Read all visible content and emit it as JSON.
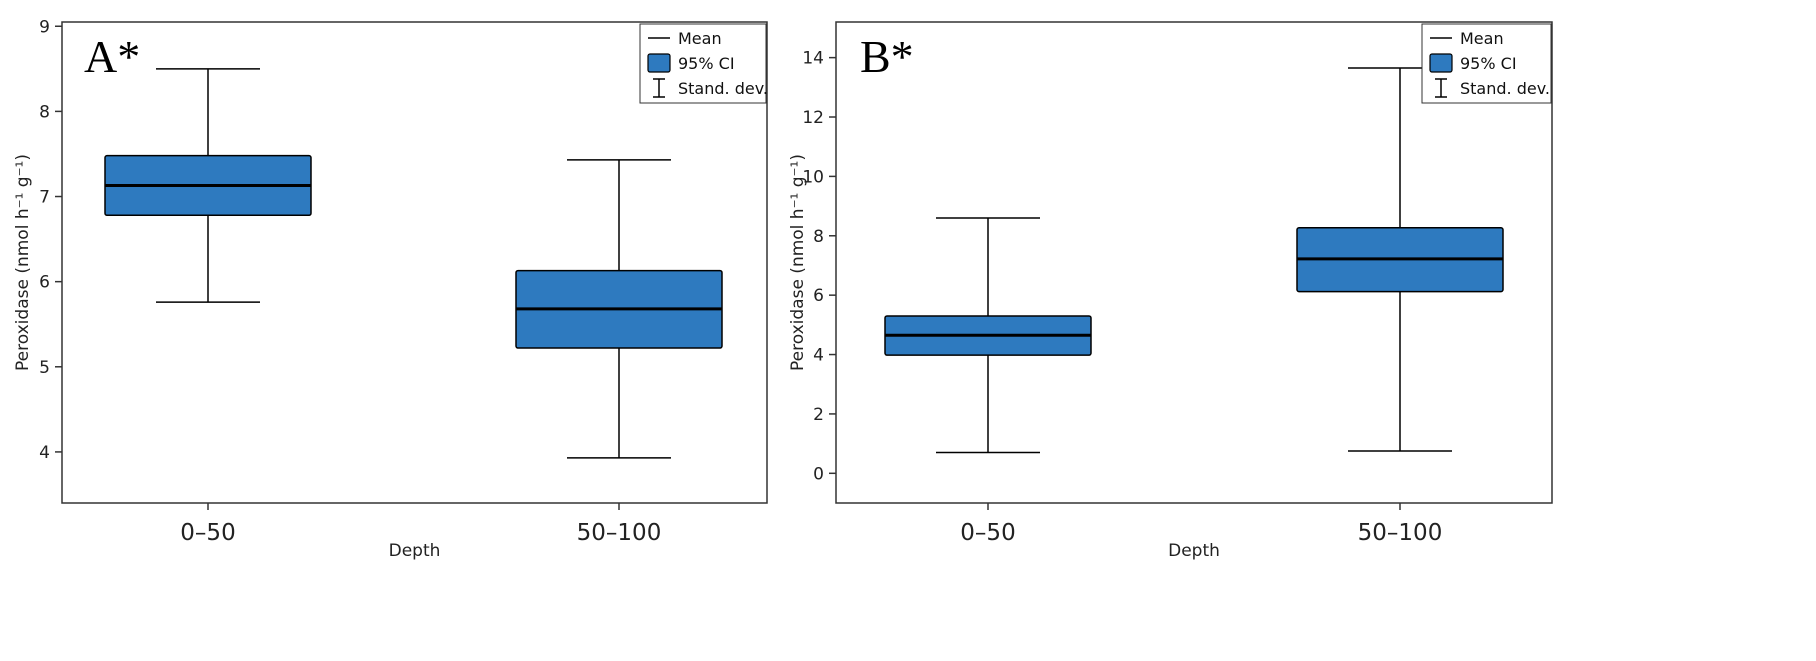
{
  "chart_data": [
    {
      "type": "boxplot",
      "panel_label": "A*",
      "xlabel": "Depth",
      "ylabel": "Peroxidase (nmol h⁻¹ g⁻¹)",
      "ylim": [
        3.4,
        9.05
      ],
      "yticks": [
        4,
        5,
        6,
        7,
        8,
        9
      ],
      "categories": [
        "0–50",
        "50–100"
      ],
      "boxes": [
        {
          "category": "0–50",
          "mean": 7.13,
          "ci_low": 6.78,
          "ci_high": 7.48,
          "sd_low": 5.76,
          "sd_high": 8.5
        },
        {
          "category": "50–100",
          "mean": 5.68,
          "ci_low": 5.22,
          "ci_high": 6.13,
          "sd_low": 3.93,
          "sd_high": 7.43
        }
      ],
      "legend": [
        {
          "symbol": "line",
          "label": "Mean"
        },
        {
          "symbol": "box",
          "label": "95% CI"
        },
        {
          "symbol": "errorbar",
          "label": "Stand. dev."
        }
      ],
      "legend_position": "top-right"
    },
    {
      "type": "boxplot",
      "panel_label": "B*",
      "xlabel": "Depth",
      "ylabel": "Peroxidase (nmol h⁻¹ g⁻¹)",
      "ylim": [
        -1.0,
        15.2
      ],
      "yticks": [
        0,
        2,
        4,
        6,
        8,
        10,
        12,
        14
      ],
      "categories": [
        "0–50",
        "50–100"
      ],
      "boxes": [
        {
          "category": "0–50",
          "mean": 4.65,
          "ci_low": 3.98,
          "ci_high": 5.3,
          "sd_low": 0.7,
          "sd_high": 8.6
        },
        {
          "category": "50–100",
          "mean": 7.22,
          "ci_low": 6.12,
          "ci_high": 8.27,
          "sd_low": 0.75,
          "sd_high": 13.65
        }
      ],
      "legend": [
        {
          "symbol": "line",
          "label": "Mean"
        },
        {
          "symbol": "box",
          "label": "95% CI"
        },
        {
          "symbol": "errorbar",
          "label": "Stand. dev."
        }
      ],
      "legend_position": "top-right"
    }
  ],
  "colors": {
    "box_fill": "#2e7abf",
    "stroke": "#000000",
    "background": "#ffffff"
  }
}
